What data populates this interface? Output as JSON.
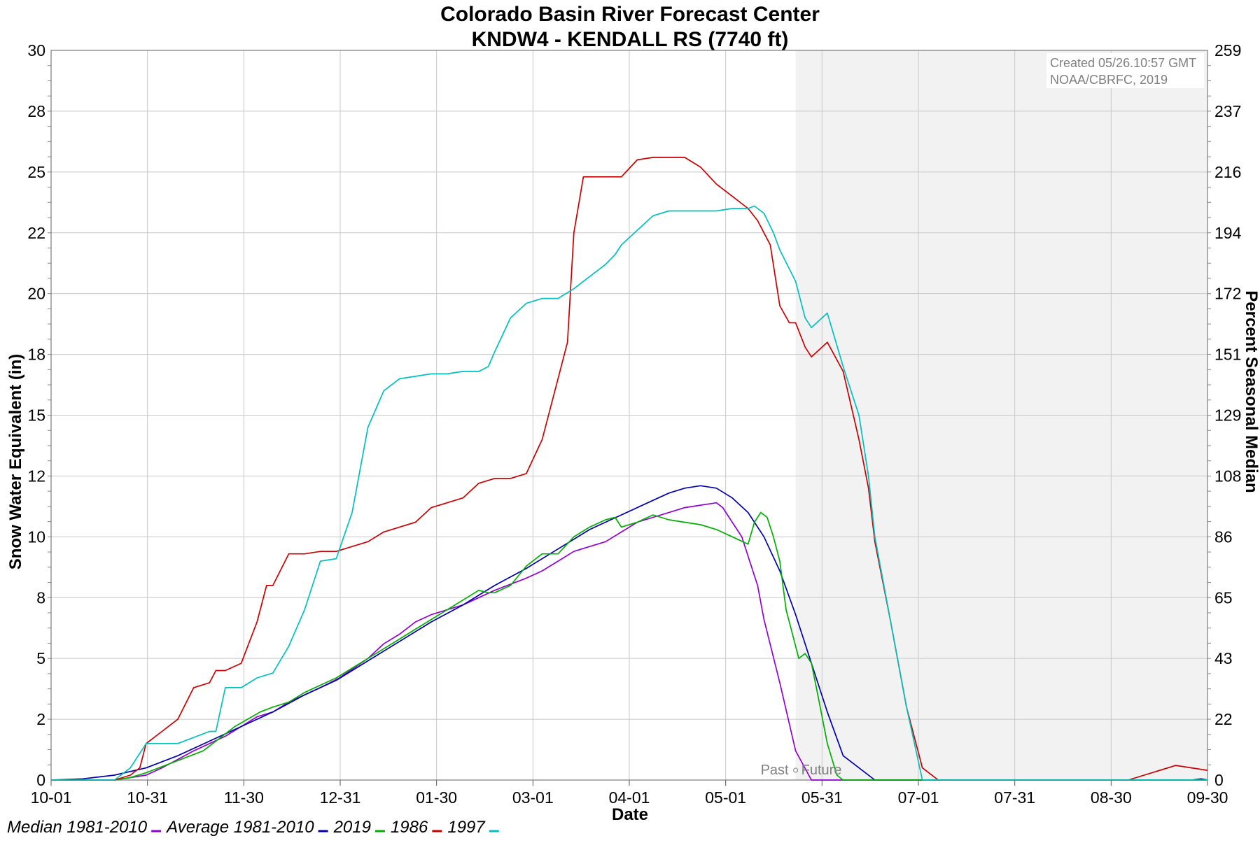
{
  "chart_data": {
    "type": "line",
    "title": "Colorado Basin River Forecast Center",
    "subtitle": "KNDW4 - KENDALL RS (7740 ft)",
    "xlabel": "Date",
    "ylabel": "Snow Water Equivalent (in)",
    "y2label": "Percent Seasonal Median",
    "x_tick_labels": [
      "10-01",
      "10-31",
      "11-30",
      "12-31",
      "01-30",
      "03-01",
      "04-01",
      "05-01",
      "05-31",
      "07-01",
      "07-31",
      "08-30",
      "09-30"
    ],
    "y_tick_labels": [
      "0",
      "2",
      "5",
      "8",
      "10",
      "12",
      "15",
      "18",
      "20",
      "22",
      "25",
      "28",
      "30"
    ],
    "y2_tick_labels": [
      "0",
      "22",
      "43",
      "65",
      "86",
      "108",
      "129",
      "151",
      "172",
      "194",
      "216",
      "237",
      "259"
    ],
    "xlim_days": [
      0,
      365
    ],
    "ylim": [
      0,
      30
    ],
    "grid": true,
    "legend_position": "bottom-left",
    "forecast_shading_start_day": 235,
    "past_label": "Past",
    "future_label": "Future",
    "credit_lines": [
      "Created 05/26.10:57 GMT",
      "NOAA/CBRFC, 2019"
    ],
    "x_unit_note": "days since Oct 1",
    "series": [
      {
        "name": "Median 1981-2010",
        "color": "#9400d3",
        "x": [
          0,
          20,
          30,
          35,
          45,
          55,
          60,
          65,
          70,
          75,
          85,
          91,
          100,
          105,
          110,
          115,
          120,
          125,
          130,
          140,
          150,
          155,
          160,
          165,
          170,
          175,
          180,
          185,
          190,
          195,
          200,
          205,
          210,
          212,
          215,
          218,
          220,
          223,
          225,
          230,
          235,
          240,
          250,
          260,
          280,
          300,
          320,
          340,
          355,
          365
        ],
        "y": [
          0,
          0,
          0.2,
          0.5,
          1.2,
          1.8,
          2.2,
          2.6,
          2.8,
          3.2,
          3.8,
          4.2,
          5.0,
          5.6,
          6.0,
          6.5,
          6.8,
          7.0,
          7.2,
          7.8,
          8.3,
          8.6,
          9.0,
          9.4,
          9.6,
          9.8,
          10.2,
          10.6,
          10.8,
          11.0,
          11.2,
          11.3,
          11.4,
          11.2,
          10.6,
          10.0,
          9.2,
          8.0,
          6.6,
          4.0,
          1.2,
          0,
          0,
          0,
          0,
          0,
          0,
          0,
          0,
          0
        ]
      },
      {
        "name": "Average 1981-2010",
        "color": "#0000b0",
        "x": [
          0,
          10,
          20,
          30,
          40,
          50,
          60,
          70,
          80,
          90,
          100,
          110,
          120,
          130,
          140,
          150,
          160,
          170,
          180,
          190,
          195,
          200,
          205,
          210,
          215,
          220,
          225,
          230,
          235,
          240,
          245,
          250,
          260,
          280,
          300,
          320,
          340,
          360,
          363,
          365
        ],
        "y": [
          0,
          0.05,
          0.2,
          0.5,
          1.0,
          1.6,
          2.2,
          2.8,
          3.5,
          4.1,
          4.9,
          5.7,
          6.5,
          7.2,
          8.0,
          8.7,
          9.5,
          10.3,
          10.9,
          11.5,
          11.8,
          12.0,
          12.1,
          12.0,
          11.6,
          11.0,
          10.0,
          8.6,
          6.8,
          4.8,
          2.8,
          1.0,
          0,
          0,
          0,
          0,
          0,
          0,
          0.05,
          0
        ]
      },
      {
        "name": "2019",
        "color": "#00b000",
        "x": [
          0,
          20,
          25,
          30,
          40,
          48,
          52,
          58,
          62,
          66,
          70,
          75,
          80,
          85,
          90,
          95,
          100,
          105,
          110,
          115,
          120,
          125,
          130,
          135,
          138,
          140,
          145,
          150,
          155,
          160,
          165,
          170,
          175,
          178,
          180,
          185,
          190,
          195,
          200,
          205,
          210,
          215,
          220,
          222,
          224,
          226,
          228,
          230,
          232,
          234,
          236,
          238,
          240,
          242,
          245,
          248,
          250,
          260,
          280,
          300,
          320,
          340,
          365
        ],
        "y": [
          0,
          0,
          0.1,
          0.3,
          0.8,
          1.2,
          1.6,
          2.2,
          2.5,
          2.8,
          3.0,
          3.2,
          3.6,
          3.9,
          4.2,
          4.6,
          5.0,
          5.4,
          5.8,
          6.2,
          6.6,
          7.0,
          7.4,
          7.8,
          7.7,
          7.7,
          8.0,
          8.8,
          9.3,
          9.3,
          10.0,
          10.4,
          10.7,
          10.8,
          10.4,
          10.6,
          10.9,
          10.7,
          10.6,
          10.5,
          10.3,
          10.0,
          9.7,
          10.6,
          11.0,
          10.8,
          10.0,
          9.0,
          7.0,
          6.0,
          5.0,
          5.2,
          4.8,
          3.5,
          1.5,
          0.2,
          0,
          0,
          0,
          0,
          0,
          0,
          0
        ]
      },
      {
        "name": "1986",
        "color": "#cc0000",
        "x": [
          0,
          20,
          25,
          28,
          30,
          35,
          40,
          45,
          50,
          52,
          55,
          60,
          65,
          68,
          70,
          75,
          80,
          85,
          90,
          95,
          100,
          105,
          110,
          115,
          120,
          125,
          130,
          135,
          140,
          145,
          150,
          155,
          160,
          163,
          165,
          168,
          170,
          175,
          180,
          185,
          190,
          195,
          200,
          205,
          210,
          215,
          220,
          223,
          225,
          227,
          230,
          233,
          235,
          238,
          240,
          245,
          250,
          255,
          258,
          260,
          265,
          270,
          275,
          280,
          300,
          320,
          340,
          355,
          365
        ],
        "y": [
          0,
          0,
          0.2,
          0.5,
          1.5,
          2.0,
          2.5,
          3.8,
          4.0,
          4.5,
          4.5,
          4.8,
          6.5,
          8.0,
          8.0,
          9.3,
          9.3,
          9.4,
          9.4,
          9.6,
          9.8,
          10.2,
          10.4,
          10.6,
          11.2,
          11.4,
          11.6,
          12.2,
          12.4,
          12.4,
          12.6,
          14.0,
          16.5,
          18.0,
          22.5,
          24.8,
          24.8,
          24.8,
          24.8,
          25.5,
          25.6,
          25.6,
          25.6,
          25.2,
          24.5,
          24.0,
          23.5,
          23.0,
          22.5,
          22.0,
          19.5,
          18.8,
          18.8,
          17.8,
          17.4,
          18.0,
          16.8,
          14.0,
          12.0,
          9.8,
          6.5,
          3.0,
          0.5,
          0,
          0,
          0,
          0,
          0.6,
          0.4
        ]
      },
      {
        "name": "1997",
        "color": "#00c0c0",
        "x": [
          0,
          20,
          25,
          30,
          40,
          50,
          52,
          55,
          60,
          65,
          70,
          75,
          80,
          85,
          90,
          95,
          100,
          105,
          110,
          115,
          120,
          125,
          130,
          135,
          138,
          140,
          145,
          150,
          155,
          160,
          165,
          170,
          175,
          178,
          180,
          185,
          190,
          195,
          200,
          210,
          215,
          220,
          222,
          225,
          228,
          230,
          235,
          238,
          240,
          245,
          250,
          255,
          258,
          260,
          265,
          270,
          275,
          280,
          300,
          320,
          340,
          365
        ],
        "y": [
          0,
          0,
          0.5,
          1.5,
          1.5,
          2.0,
          2.0,
          3.8,
          3.8,
          4.2,
          4.4,
          5.5,
          7.0,
          9.0,
          9.1,
          11.0,
          14.5,
          16.0,
          16.5,
          16.6,
          16.7,
          16.7,
          16.8,
          16.8,
          17.0,
          17.6,
          19.0,
          19.6,
          19.8,
          19.8,
          20.2,
          20.7,
          21.2,
          21.6,
          22.0,
          22.6,
          23.2,
          23.4,
          23.4,
          23.4,
          23.5,
          23.5,
          23.6,
          23.3,
          22.5,
          21.8,
          20.5,
          19.0,
          18.6,
          19.2,
          17.0,
          15.0,
          12.5,
          10.0,
          6.5,
          3.0,
          0,
          0,
          0,
          0,
          0,
          0
        ]
      }
    ]
  }
}
